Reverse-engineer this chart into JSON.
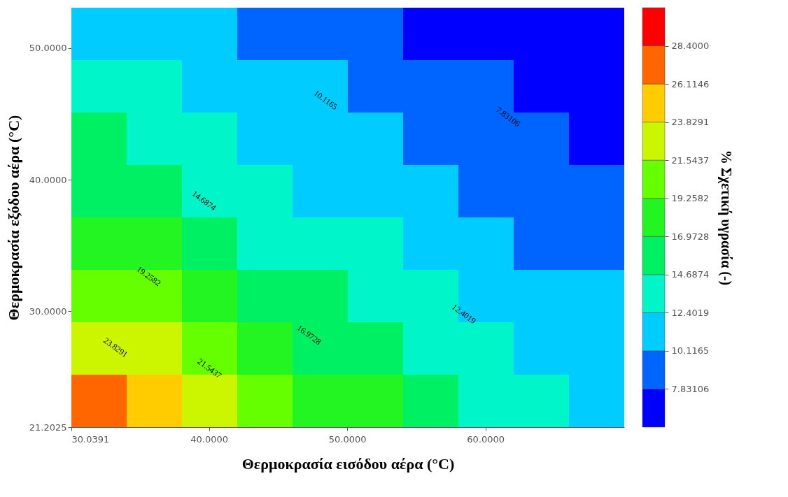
{
  "chart_data": {
    "type": "heatmap",
    "xlabel": "Θερμοκρασία εισόδου αέρα (°C)",
    "ylabel": "Θερμοκρασία εξόδου αέρα (°C)",
    "clabel": "% Σχετική υγρασία (-)",
    "cells": [
      [
        12.38,
        11.56,
        10.75,
        9.96,
        9.24,
        8.52,
        7.81,
        7.18,
        6.56,
        5.94
      ],
      [
        13.67,
        12.66,
        11.8,
        10.98,
        10.16,
        9.45,
        8.73,
        8.0,
        7.36,
        6.74
      ],
      [
        15.05,
        13.95,
        12.95,
        12.03,
        11.21,
        10.39,
        9.65,
        8.93,
        8.21,
        7.54
      ],
      [
        16.83,
        15.44,
        14.24,
        13.23,
        12.26,
        11.44,
        10.63,
        9.85,
        9.13,
        8.42
      ],
      [
        18.86,
        17.26,
        15.85,
        14.53,
        13.52,
        12.51,
        11.68,
        10.86,
        10.06,
        9.34
      ],
      [
        21.15,
        19.32,
        17.73,
        16.24,
        14.85,
        13.8,
        12.8,
        11.91,
        11.09,
        10.28
      ],
      [
        23.77,
        21.68,
        19.85,
        18.18,
        16.63,
        15.24,
        14.09,
        13.08,
        12.14,
        11.33
      ],
      [
        26.86,
        24.41,
        22.29,
        20.37,
        18.62,
        17.02,
        15.64,
        14.38,
        13.37,
        12.38
      ]
    ],
    "xlim": [
      30.0391,
      70.04
    ],
    "xticks": [
      30.0391,
      {
        "value": 40,
        "label": "40.0000"
      },
      {
        "value": 50,
        "label": "50.0000"
      },
      {
        "value": 60,
        "label": "60.0000"
      }
    ],
    "ylim": [
      21.2025,
      53.08
    ],
    "yticks": [
      21.2025,
      {
        "value": 30,
        "label": "30.0000"
      },
      {
        "value": 40,
        "label": "40.0000"
      },
      {
        "value": 50,
        "label": "50.0000"
      }
    ],
    "clim": [
      5.5456,
      30.6854
    ],
    "cticks": [
      7.83106,
      10.1165,
      12.4019,
      14.6874,
      16.9728,
      19.2582,
      21.5437,
      23.8291,
      26.1146,
      {
        "value": 28.4,
        "label": "28.4000"
      }
    ],
    "colors": [
      "#0000ff",
      "#0064ff",
      "#00ccff",
      "#00f5c8",
      "#00f064",
      "#22f522",
      "#66ff00",
      "#ccf500",
      "#ffcc00",
      "#ff6600",
      "#ff0000"
    ],
    "grid": false,
    "annotations": [
      "10.1165",
      "7.83106",
      "14.6874",
      "12.4019",
      "19.2582",
      "16.9728",
      "23.8291",
      "21.5437"
    ]
  }
}
